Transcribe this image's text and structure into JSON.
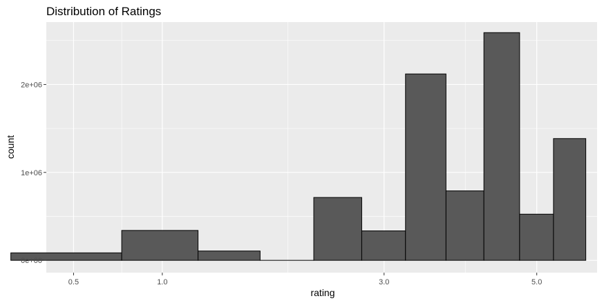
{
  "chart_data": {
    "type": "bar",
    "title": "Distribution of Ratings",
    "xlabel": "rating",
    "ylabel": "count",
    "x_scale": "sqrt",
    "bins": [
      {
        "center": 0.5,
        "count": 85000
      },
      {
        "center": 1.0,
        "count": 340000
      },
      {
        "center": 1.5,
        "count": 106000
      },
      {
        "center": 2.0,
        "count": 0
      },
      {
        "center": 2.5,
        "count": 715000
      },
      {
        "center": 3.0,
        "count": 335000
      },
      {
        "center": 3.5,
        "count": 2120000
      },
      {
        "center": 4.0,
        "count": 790000
      },
      {
        "center": 4.5,
        "count": 2590000
      },
      {
        "center": 5.0,
        "count": 525000
      },
      {
        "center": 5.5,
        "count": 1385000
      }
    ],
    "x_ticks": [
      {
        "value": 0.5,
        "label": "0.5"
      },
      {
        "value": 1.0,
        "label": "1.0"
      },
      {
        "value": 3.0,
        "label": "3.0"
      },
      {
        "value": 5.0,
        "label": "5.0"
      }
    ],
    "y_ticks": [
      {
        "value": 0,
        "label": "0e+00"
      },
      {
        "value": 1000000,
        "label": "1e+06"
      },
      {
        "value": 2000000,
        "label": "2e+06"
      }
    ],
    "ylim": [
      0,
      2600000
    ],
    "grid": true,
    "colors": {
      "panel": "#ebebeb",
      "grid": "#ffffff",
      "bar_fill": "#595959",
      "bar_stroke": "#000000",
      "tick_text": "#4d4d4d"
    }
  }
}
